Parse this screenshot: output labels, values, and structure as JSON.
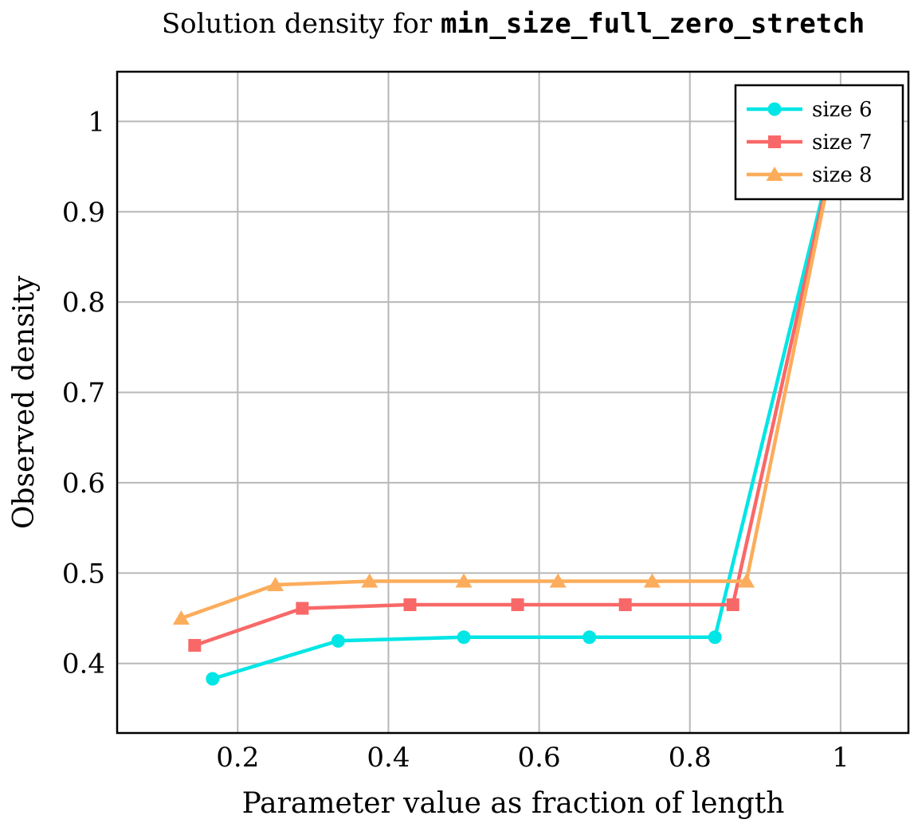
{
  "chart_data": {
    "type": "line",
    "title_prefix": "Solution density for ",
    "title_code": "min_size_full_zero_stretch",
    "xlabel": "Parameter value as fraction of length",
    "ylabel": "Observed density",
    "xlim": [
      0.04,
      1.09
    ],
    "ylim": [
      0.323,
      1.055
    ],
    "xticks": [
      0.2,
      0.4,
      0.6,
      0.8,
      1
    ],
    "xtick_labels": [
      "0.2",
      "0.4",
      "0.6",
      "0.8",
      "1"
    ],
    "yticks": [
      0.4,
      0.5,
      0.6,
      0.7,
      0.8,
      0.9,
      1
    ],
    "ytick_labels": [
      "0.4",
      "0.5",
      "0.6",
      "0.7",
      "0.8",
      "0.9",
      "1"
    ],
    "grid": true,
    "legend_position": "top-right",
    "series": [
      {
        "name": "size 6",
        "color": "#00e5e5",
        "marker": "circle",
        "x": [
          0.1667,
          0.3333,
          0.5,
          0.6667,
          0.8333,
          1.0
        ],
        "y": [
          0.383,
          0.425,
          0.429,
          0.429,
          0.429,
          1.0
        ]
      },
      {
        "name": "size 7",
        "color": "#f96868",
        "marker": "square",
        "x": [
          0.1429,
          0.2857,
          0.4286,
          0.5714,
          0.7143,
          0.8571,
          1.0
        ],
        "y": [
          0.42,
          0.461,
          0.465,
          0.465,
          0.465,
          0.465,
          1.0
        ]
      },
      {
        "name": "size 8",
        "color": "#fbad5c",
        "marker": "triangle",
        "x": [
          0.125,
          0.25,
          0.375,
          0.5,
          0.625,
          0.75,
          0.875,
          1.0
        ],
        "y": [
          0.45,
          0.487,
          0.491,
          0.491,
          0.491,
          0.491,
          0.491,
          1.0
        ]
      }
    ]
  }
}
